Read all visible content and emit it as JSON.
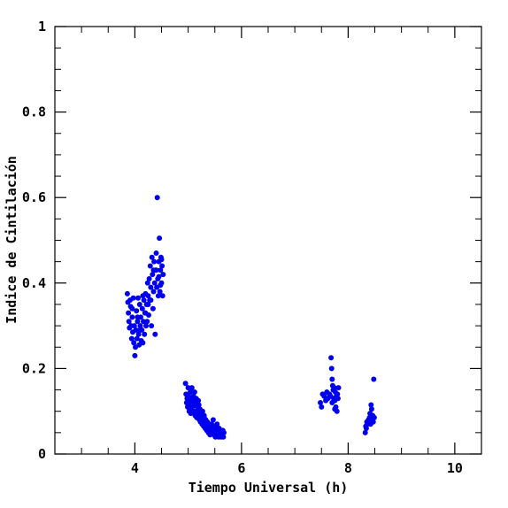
{
  "chart_data": {
    "type": "scatter",
    "title": "",
    "xlabel": "Tiempo Universal (h)",
    "ylabel": "Indice de Cintilación",
    "xlim": [
      2.5,
      10.5
    ],
    "ylim": [
      0,
      1
    ],
    "xticks": [
      4,
      6,
      8,
      10
    ],
    "xtick_labels": [
      "4",
      "6",
      "8",
      "10"
    ],
    "yticks": [
      0,
      0.2,
      0.4,
      0.6,
      0.8,
      1
    ],
    "ytick_labels": [
      "0",
      "0.2",
      "0.4",
      "0.6",
      "0.8",
      "1"
    ],
    "grid": false,
    "marker_color": "#0000ee",
    "series": [
      {
        "points": [
          [
            3.86,
            0.375
          ],
          [
            3.87,
            0.355
          ],
          [
            3.88,
            0.33
          ],
          [
            3.89,
            0.31
          ],
          [
            3.9,
            0.295
          ],
          [
            3.91,
            0.36
          ],
          [
            3.92,
            0.345
          ],
          [
            3.93,
            0.3
          ],
          [
            3.94,
            0.27
          ],
          [
            3.95,
            0.32
          ],
          [
            3.96,
            0.285
          ],
          [
            3.97,
            0.365
          ],
          [
            3.98,
            0.26
          ],
          [
            3.99,
            0.3
          ],
          [
            4.0,
            0.23
          ],
          [
            4.01,
            0.25
          ],
          [
            4.02,
            0.29
          ],
          [
            4.03,
            0.335
          ],
          [
            4.04,
            0.27
          ],
          [
            4.05,
            0.31
          ],
          [
            4.06,
            0.365
          ],
          [
            4.07,
            0.28
          ],
          [
            4.08,
            0.255
          ],
          [
            4.09,
            0.35
          ],
          [
            4.1,
            0.3
          ],
          [
            4.11,
            0.32
          ],
          [
            4.12,
            0.265
          ],
          [
            4.13,
            0.29
          ],
          [
            4.14,
            0.34
          ],
          [
            4.15,
            0.26
          ],
          [
            4.16,
            0.31
          ],
          [
            4.17,
            0.36
          ],
          [
            4.18,
            0.28
          ],
          [
            4.19,
            0.33
          ],
          [
            4.2,
            0.375
          ],
          [
            4.21,
            0.3
          ],
          [
            4.22,
            0.35
          ],
          [
            4.23,
            0.31
          ],
          [
            4.24,
            0.4
          ],
          [
            4.25,
            0.37
          ],
          [
            4.26,
            0.325
          ],
          [
            4.27,
            0.41
          ],
          [
            4.28,
            0.36
          ],
          [
            4.29,
            0.44
          ],
          [
            4.3,
            0.39
          ],
          [
            4.31,
            0.3
          ],
          [
            4.32,
            0.46
          ],
          [
            4.33,
            0.42
          ],
          [
            4.34,
            0.34
          ],
          [
            4.35,
            0.38
          ],
          [
            4.36,
            0.45
          ],
          [
            4.37,
            0.4
          ],
          [
            4.38,
            0.28
          ],
          [
            4.39,
            0.43
          ],
          [
            4.4,
            0.47
          ],
          [
            4.41,
            0.39
          ],
          [
            4.42,
            0.6
          ],
          [
            4.43,
            0.41
          ],
          [
            4.44,
            0.37
          ],
          [
            4.45,
            0.45
          ],
          [
            4.46,
            0.505
          ],
          [
            4.47,
            0.38
          ],
          [
            4.48,
            0.43
          ],
          [
            4.49,
            0.46
          ],
          [
            4.5,
            0.4
          ],
          [
            4.51,
            0.44
          ],
          [
            4.52,
            0.37
          ],
          [
            4.53,
            0.42
          ],
          [
            4.15,
            0.37
          ],
          [
            4.2,
            0.33
          ],
          [
            4.3,
            0.36
          ],
          [
            4.4,
            0.43
          ],
          [
            4.45,
            0.415
          ],
          [
            4.5,
            0.455
          ],
          [
            3.95,
            0.34
          ],
          [
            4.05,
            0.32
          ],
          [
            4.25,
            0.35
          ],
          [
            4.35,
            0.43
          ],
          [
            4.1,
            0.29
          ],
          [
            4.48,
            0.395
          ],
          [
            4.95,
            0.165
          ],
          [
            4.96,
            0.14
          ],
          [
            4.97,
            0.12
          ],
          [
            4.98,
            0.13
          ],
          [
            4.99,
            0.11
          ],
          [
            5.0,
            0.155
          ],
          [
            5.01,
            0.135
          ],
          [
            5.02,
            0.1
          ],
          [
            5.03,
            0.12
          ],
          [
            5.04,
            0.145
          ],
          [
            5.05,
            0.095
          ],
          [
            5.06,
            0.125
          ],
          [
            5.07,
            0.155
          ],
          [
            5.08,
            0.11
          ],
          [
            5.09,
            0.13
          ],
          [
            5.1,
            0.1
          ],
          [
            5.11,
            0.12
          ],
          [
            5.12,
            0.145
          ],
          [
            5.13,
            0.09
          ],
          [
            5.14,
            0.115
          ],
          [
            5.15,
            0.13
          ],
          [
            5.16,
            0.085
          ],
          [
            5.17,
            0.11
          ],
          [
            5.18,
            0.1
          ],
          [
            5.19,
            0.125
          ],
          [
            5.2,
            0.09
          ],
          [
            5.21,
            0.08
          ],
          [
            5.22,
            0.105
          ],
          [
            5.23,
            0.075
          ],
          [
            5.24,
            0.095
          ],
          [
            5.25,
            0.085
          ],
          [
            5.26,
            0.07
          ],
          [
            5.27,
            0.1
          ],
          [
            5.28,
            0.08
          ],
          [
            5.29,
            0.065
          ],
          [
            5.3,
            0.09
          ],
          [
            5.31,
            0.075
          ],
          [
            5.32,
            0.06
          ],
          [
            5.33,
            0.08
          ],
          [
            5.34,
            0.07
          ],
          [
            5.35,
            0.055
          ],
          [
            5.36,
            0.075
          ],
          [
            5.37,
            0.065
          ],
          [
            5.38,
            0.05
          ],
          [
            5.39,
            0.07
          ],
          [
            5.4,
            0.06
          ],
          [
            5.41,
            0.045
          ],
          [
            5.42,
            0.065
          ],
          [
            5.43,
            0.055
          ],
          [
            5.44,
            0.07
          ],
          [
            5.45,
            0.05
          ],
          [
            5.46,
            0.06
          ],
          [
            5.47,
            0.08
          ],
          [
            5.48,
            0.045
          ],
          [
            5.49,
            0.065
          ],
          [
            5.5,
            0.055
          ],
          [
            5.51,
            0.04
          ],
          [
            5.52,
            0.06
          ],
          [
            5.53,
            0.05
          ],
          [
            5.54,
            0.07
          ],
          [
            5.55,
            0.045
          ],
          [
            5.56,
            0.055
          ],
          [
            5.57,
            0.04
          ],
          [
            5.58,
            0.06
          ],
          [
            5.59,
            0.05
          ],
          [
            5.6,
            0.045
          ],
          [
            5.61,
            0.055
          ],
          [
            5.62,
            0.04
          ],
          [
            5.63,
            0.05
          ],
          [
            5.64,
            0.045
          ],
          [
            5.65,
            0.055
          ],
          [
            5.66,
            0.04
          ],
          [
            5.67,
            0.05
          ],
          [
            5.05,
            0.11
          ],
          [
            5.1,
            0.135
          ],
          [
            5.15,
            0.1
          ],
          [
            5.2,
            0.115
          ],
          [
            5.25,
            0.095
          ],
          [
            5.0,
            0.12
          ],
          [
            5.3,
            0.085
          ],
          [
            7.48,
            0.12
          ],
          [
            7.5,
            0.11
          ],
          [
            7.52,
            0.14
          ],
          [
            7.55,
            0.135
          ],
          [
            7.58,
            0.125
          ],
          [
            7.6,
            0.145
          ],
          [
            7.62,
            0.13
          ],
          [
            7.65,
            0.14
          ],
          [
            7.67,
            0.135
          ],
          [
            7.68,
            0.225
          ],
          [
            7.69,
            0.2
          ],
          [
            7.7,
            0.175
          ],
          [
            7.71,
            0.16
          ],
          [
            7.72,
            0.15
          ],
          [
            7.73,
            0.13
          ],
          [
            7.74,
            0.155
          ],
          [
            7.75,
            0.125
          ],
          [
            7.76,
            0.145
          ],
          [
            7.77,
            0.11
          ],
          [
            7.78,
            0.135
          ],
          [
            7.79,
            0.1
          ],
          [
            7.8,
            0.14
          ],
          [
            7.81,
            0.13
          ],
          [
            7.82,
            0.155
          ],
          [
            7.7,
            0.12
          ],
          [
            7.75,
            0.105
          ],
          [
            8.32,
            0.05
          ],
          [
            8.33,
            0.065
          ],
          [
            8.34,
            0.06
          ],
          [
            8.35,
            0.075
          ],
          [
            8.36,
            0.07
          ],
          [
            8.38,
            0.08
          ],
          [
            8.4,
            0.085
          ],
          [
            8.41,
            0.095
          ],
          [
            8.42,
            0.07
          ],
          [
            8.43,
            0.115
          ],
          [
            8.44,
            0.105
          ],
          [
            8.45,
            0.08
          ],
          [
            8.46,
            0.09
          ],
          [
            8.47,
            0.075
          ],
          [
            8.48,
            0.175
          ],
          [
            8.49,
            0.085
          ]
        ]
      }
    ]
  }
}
